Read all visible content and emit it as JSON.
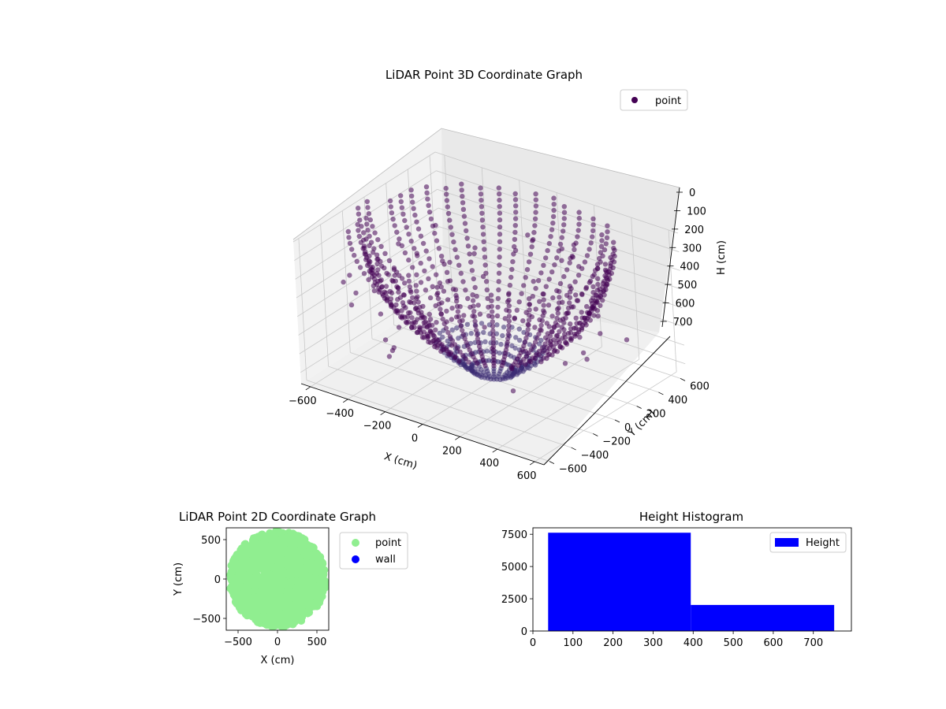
{
  "chart_data": [
    {
      "type": "scatter",
      "projection": "3d",
      "title": "LiDAR Point 3D Coordinate Graph",
      "xlabel": "X (cm)",
      "ylabel": "Y (cm)",
      "zlabel": "H (cm)",
      "xticks": [
        "−600",
        "−400",
        "−200",
        "0",
        "200",
        "400",
        "600"
      ],
      "yticks": [
        "−600",
        "−400",
        "−200",
        "0",
        "200",
        "400",
        "600"
      ],
      "zticks": [
        "0",
        "100",
        "200",
        "300",
        "400",
        "500",
        "600",
        "700"
      ],
      "xlim": [
        -650,
        650
      ],
      "ylim": [
        -650,
        650
      ],
      "zlim": [
        0,
        760
      ],
      "z_inverted": true,
      "grid": true,
      "legend": [
        {
          "label": "point",
          "color": "#440154"
        }
      ],
      "legend_position": "upper-right",
      "series": [
        {
          "name": "point",
          "color": "#440154",
          "description_points": "ring of points; outer radius ~600 cm at H 0–300, converging toward center at H ~700"
        }
      ]
    },
    {
      "type": "scatter",
      "title": "LiDAR Point 2D Coordinate Graph",
      "xlabel": "X (cm)",
      "ylabel": "Y (cm)",
      "xticks": [
        "−500",
        "0",
        "500"
      ],
      "yticks": [
        "−500",
        "0",
        "500"
      ],
      "xlim": [
        -650,
        650
      ],
      "ylim": [
        -650,
        650
      ],
      "legend": [
        {
          "label": "point",
          "color": "#90ee90"
        },
        {
          "label": "wall",
          "color": "#0000ff"
        }
      ],
      "legend_position": "outside-right",
      "series": [
        {
          "name": "point",
          "color": "#90ee90"
        },
        {
          "name": "wall",
          "color": "#0000ff"
        }
      ]
    },
    {
      "type": "bar",
      "title": "Height Histogram",
      "xticks": [
        "0",
        "100",
        "200",
        "300",
        "400",
        "500",
        "600",
        "700"
      ],
      "yticks": [
        "0",
        "2500",
        "5000",
        "7500"
      ],
      "xlim": [
        0,
        795
      ],
      "ylim": [
        0,
        8000
      ],
      "bins": [
        {
          "x0": 38,
          "x1": 394,
          "count": 7620
        },
        {
          "x0": 394,
          "x1": 752,
          "count": 2020
        }
      ],
      "color": "#0000ff",
      "legend": [
        {
          "label": "Height",
          "color": "#0000ff"
        }
      ],
      "legend_position": "upper-right"
    }
  ]
}
